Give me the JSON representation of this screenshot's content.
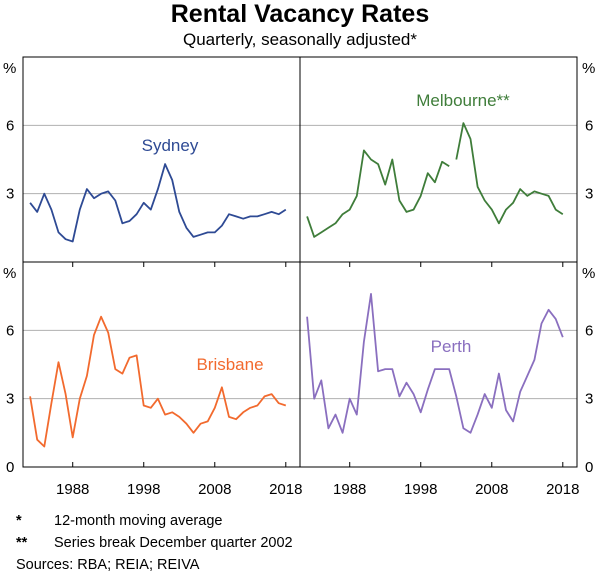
{
  "title": "Rental Vacancy Rates",
  "subtitle": "Quarterly, seasonally adjusted*",
  "notes": [
    {
      "mark": "*",
      "text": "12-month moving average"
    },
    {
      "mark": "**",
      "text": "Series break December quarter 2002"
    }
  ],
  "sources": "Sources: RBA; REIA; REIVA",
  "colors": {
    "sydney": "#2e4a94",
    "melbourne": "#3f7d3a",
    "brisbane": "#f26a2e",
    "perth": "#8a6fbf",
    "grid": "#b0b0b0",
    "frame": "#000000"
  },
  "chart_data": {
    "type": "line",
    "layout": "2x2 panels",
    "ylabel": "%",
    "ylim": [
      0,
      9
    ],
    "yticks": [
      0,
      3,
      6
    ],
    "xlim": [
      1981,
      2020
    ],
    "xticks": [
      1988,
      1998,
      2008,
      2018
    ],
    "panels": [
      {
        "name": "Sydney",
        "series": [
          {
            "name": "Sydney",
            "x": [
              1982,
              1983,
              1984,
              1985,
              1986,
              1987,
              1988,
              1989,
              1990,
              1991,
              1992,
              1993,
              1994,
              1995,
              1996,
              1997,
              1998,
              1999,
              2000,
              2001,
              2002,
              2003,
              2004,
              2005,
              2006,
              2007,
              2008,
              2009,
              2010,
              2011,
              2012,
              2013,
              2014,
              2015,
              2016,
              2017,
              2018
            ],
            "y": [
              2.6,
              2.2,
              3.0,
              2.3,
              1.3,
              1.0,
              0.9,
              2.3,
              3.2,
              2.8,
              3.0,
              3.1,
              2.7,
              1.7,
              1.8,
              2.1,
              2.6,
              2.3,
              3.2,
              4.3,
              3.6,
              2.2,
              1.5,
              1.1,
              1.2,
              1.3,
              1.3,
              1.6,
              2.1,
              2.0,
              1.9,
              2.0,
              2.0,
              2.1,
              2.2,
              2.1,
              2.3
            ]
          }
        ]
      },
      {
        "name": "Melbourne**",
        "series": [
          {
            "name": "Melbourne",
            "x": [
              1982,
              1983,
              1984,
              1985,
              1986,
              1987,
              1988,
              1989,
              1990,
              1991,
              1992,
              1993,
              1994,
              1995,
              1996,
              1997,
              1998,
              1999,
              2000,
              2001,
              2002
            ],
            "y": [
              2.0,
              1.1,
              1.3,
              1.5,
              1.7,
              2.1,
              2.3,
              2.9,
              4.9,
              4.5,
              4.3,
              3.4,
              4.5,
              2.7,
              2.2,
              2.3,
              2.9,
              3.9,
              3.5,
              4.4,
              4.2
            ]
          },
          {
            "name": "Melbourne",
            "x": [
              2003,
              2004,
              2005,
              2006,
              2007,
              2008,
              2009,
              2010,
              2011,
              2012,
              2013,
              2014,
              2015,
              2016,
              2017,
              2018
            ],
            "y": [
              4.5,
              6.1,
              5.4,
              3.3,
              2.7,
              2.3,
              1.7,
              2.3,
              2.6,
              3.2,
              2.9,
              3.1,
              3.0,
              2.9,
              2.3,
              2.1
            ]
          }
        ]
      },
      {
        "name": "Brisbane",
        "series": [
          {
            "name": "Brisbane",
            "x": [
              1982,
              1983,
              1984,
              1985,
              1986,
              1987,
              1988,
              1989,
              1990,
              1991,
              1992,
              1993,
              1994,
              1995,
              1996,
              1997,
              1998,
              1999,
              2000,
              2001,
              2002,
              2003,
              2004,
              2005,
              2006,
              2007,
              2008,
              2009,
              2010,
              2011,
              2012,
              2013,
              2014,
              2015,
              2016,
              2017,
              2018
            ],
            "y": [
              3.1,
              1.2,
              0.9,
              2.8,
              4.6,
              3.2,
              1.3,
              3.0,
              4.0,
              5.8,
              6.6,
              5.9,
              4.3,
              4.1,
              4.8,
              4.9,
              2.7,
              2.6,
              3.0,
              2.3,
              2.4,
              2.2,
              1.9,
              1.5,
              1.9,
              2.0,
              2.6,
              3.5,
              2.2,
              2.1,
              2.4,
              2.6,
              2.7,
              3.1,
              3.2,
              2.8,
              2.7
            ]
          }
        ]
      },
      {
        "name": "Perth",
        "series": [
          {
            "name": "Perth",
            "x": [
              1982,
              1983,
              1984,
              1985,
              1986,
              1987,
              1988,
              1989,
              1990,
              1991,
              1992,
              1993,
              1994,
              1995,
              1996,
              1997,
              1998,
              1999,
              2000,
              2001,
              2002,
              2003,
              2004,
              2005,
              2006,
              2007,
              2008,
              2009,
              2010,
              2011,
              2012,
              2013,
              2014,
              2015,
              2016,
              2017,
              2018
            ],
            "y": [
              6.6,
              3.0,
              3.8,
              1.7,
              2.3,
              1.5,
              3.0,
              2.3,
              5.5,
              7.6,
              4.2,
              4.3,
              4.3,
              3.1,
              3.7,
              3.2,
              2.4,
              3.4,
              4.3,
              4.3,
              4.3,
              3.1,
              1.7,
              1.5,
              2.3,
              3.2,
              2.6,
              4.1,
              2.5,
              2.0,
              3.3,
              4.0,
              4.7,
              6.3,
              6.9,
              6.5,
              5.7
            ]
          }
        ]
      }
    ]
  }
}
